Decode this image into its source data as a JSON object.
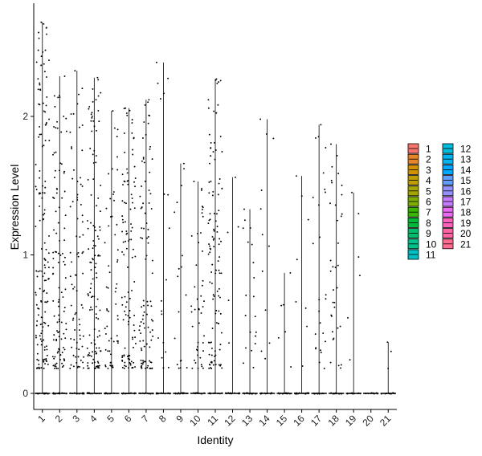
{
  "chart_data": {
    "type": "violin-jitter",
    "title": "",
    "xlabel": "Identity",
    "ylabel": "Expression Level",
    "ylim": [
      -0.12,
      2.8
    ],
    "yticks": [
      0,
      1,
      2
    ],
    "grid": false,
    "legend_position": "right",
    "categories": [
      "1",
      "2",
      "3",
      "4",
      "5",
      "6",
      "7",
      "8",
      "9",
      "10",
      "11",
      "12",
      "13",
      "14",
      "15",
      "16",
      "17",
      "18",
      "19",
      "20",
      "21"
    ],
    "colors": [
      "#F8766D",
      "#E8852A",
      "#D39200",
      "#BD9D00",
      "#A3A500",
      "#7CAE00",
      "#39B600",
      "#00BA38",
      "#00BE6D",
      "#00C08B",
      "#00BFC4",
      "#00BBDA",
      "#00B4F0",
      "#00A9FF",
      "#619CFF",
      "#9590FF",
      "#C77CFF",
      "#E76BF3",
      "#FF62BC",
      "#FF64A5",
      "#FF6C91"
    ],
    "series": [
      {
        "name": "1",
        "max": 2.68,
        "n_expressing": 150
      },
      {
        "name": "2",
        "max": 2.29,
        "n_expressing": 110
      },
      {
        "name": "3",
        "max": 2.33,
        "n_expressing": 80
      },
      {
        "name": "4",
        "max": 2.28,
        "n_expressing": 120
      },
      {
        "name": "5",
        "max": 2.04,
        "n_expressing": 60
      },
      {
        "name": "6",
        "max": 2.06,
        "n_expressing": 110
      },
      {
        "name": "7",
        "max": 2.12,
        "n_expressing": 95
      },
      {
        "name": "8",
        "max": 2.39,
        "n_expressing": 18
      },
      {
        "name": "9",
        "max": 1.66,
        "n_expressing": 18
      },
      {
        "name": "10",
        "max": 1.53,
        "n_expressing": 45
      },
      {
        "name": "11",
        "max": 2.27,
        "n_expressing": 110
      },
      {
        "name": "12",
        "max": 1.56,
        "n_expressing": 5
      },
      {
        "name": "13",
        "max": 1.33,
        "n_expressing": 20
      },
      {
        "name": "14",
        "max": 1.98,
        "n_expressing": 12
      },
      {
        "name": "15",
        "max": 0.87,
        "n_expressing": 6
      },
      {
        "name": "16",
        "max": 1.57,
        "n_expressing": 8
      },
      {
        "name": "17",
        "max": 1.94,
        "n_expressing": 25
      },
      {
        "name": "18",
        "max": 1.8,
        "n_expressing": 35
      },
      {
        "name": "19",
        "max": 1.45,
        "n_expressing": 6
      },
      {
        "name": "20",
        "max": 0.0,
        "n_expressing": 0
      },
      {
        "name": "21",
        "max": 0.37,
        "n_expressing": 3
      }
    ]
  }
}
